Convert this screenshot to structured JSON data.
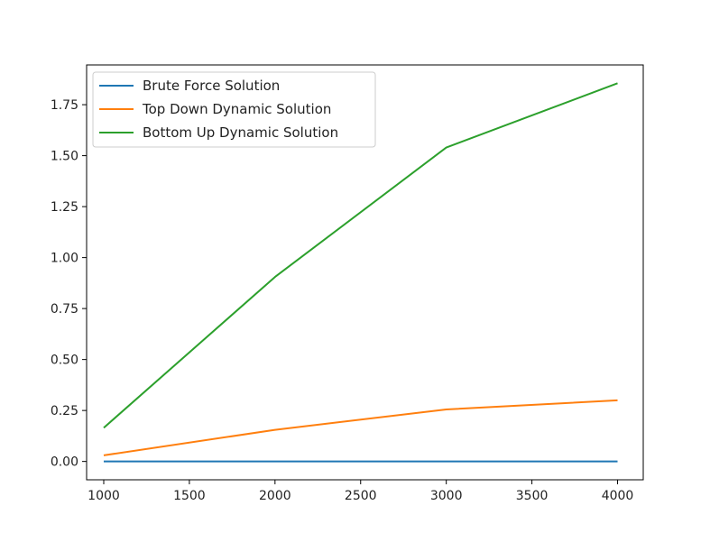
{
  "chart_data": {
    "type": "line",
    "title": "",
    "xlabel": "",
    "ylabel": "",
    "x": [
      1000,
      2000,
      3000,
      4000
    ],
    "xlim": [
      900,
      4150
    ],
    "ylim": [
      -0.09,
      1.945
    ],
    "x_ticks": [
      1000,
      1500,
      2000,
      2500,
      3000,
      3500,
      4000
    ],
    "x_tick_labels": [
      "1000",
      "1500",
      "2000",
      "2500",
      "3000",
      "3500",
      "4000"
    ],
    "y_ticks": [
      0,
      0.25,
      0.5,
      0.75,
      1.0,
      1.25,
      1.5,
      1.75
    ],
    "y_tick_labels": [
      "0.00",
      "0.25",
      "0.50",
      "0.75",
      "1.00",
      "1.25",
      "1.50",
      "1.75"
    ],
    "grid": false,
    "legend_position": "top-left",
    "series": [
      {
        "name": "Brute Force Solution",
        "color": "#1f77b4",
        "values": [
          0.0,
          0.0,
          0.0,
          0.0
        ]
      },
      {
        "name": "Top Down Dynamic Solution",
        "color": "#ff7f0e",
        "values": [
          0.03,
          0.155,
          0.255,
          0.3
        ]
      },
      {
        "name": "Bottom Up Dynamic Solution",
        "color": "#2ca02c",
        "values": [
          0.165,
          0.905,
          1.54,
          1.855
        ]
      }
    ]
  }
}
